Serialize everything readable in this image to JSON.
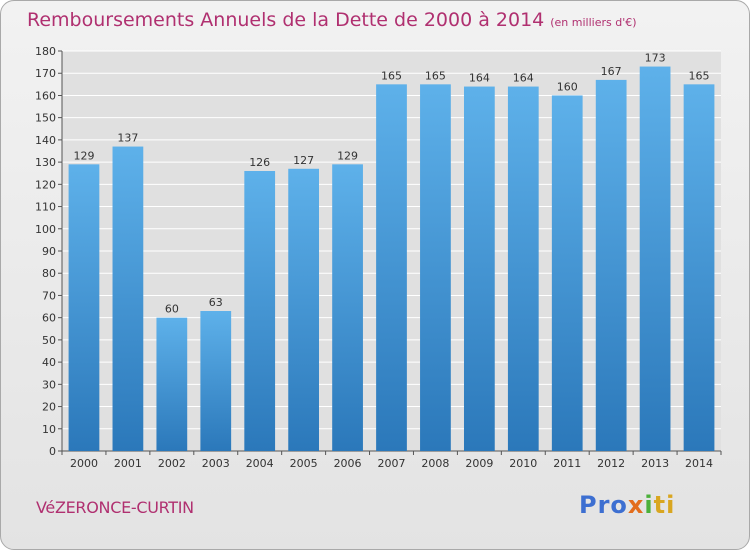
{
  "header": {
    "title": "Remboursements Annuels de la Dette de 2000 à 2014",
    "unit": "(en milliers d'€)"
  },
  "footer": {
    "commune": "VéZERONCE-CURTIN",
    "brand_parts": [
      "Pro",
      "x",
      "i",
      "ti"
    ]
  },
  "colors": {
    "bar_top": "#5eb1ea",
    "bar_bottom": "#2b78ba",
    "title": "#b03070",
    "grid": "#ffffff",
    "plot_bg": "#e0e0e0"
  },
  "chart_data": {
    "type": "bar",
    "title": "Remboursements Annuels de la Dette de 2000 à 2014",
    "categories": [
      "2000",
      "2001",
      "2002",
      "2003",
      "2004",
      "2005",
      "2006",
      "2007",
      "2008",
      "2009",
      "2010",
      "2011",
      "2012",
      "2013",
      "2014"
    ],
    "values": [
      129,
      137,
      60,
      63,
      126,
      127,
      129,
      165,
      165,
      164,
      164,
      160,
      167,
      173,
      165
    ],
    "ylim": [
      0,
      180
    ],
    "ytick_step": 10,
    "grid": true,
    "xlabel": "",
    "ylabel": ""
  }
}
